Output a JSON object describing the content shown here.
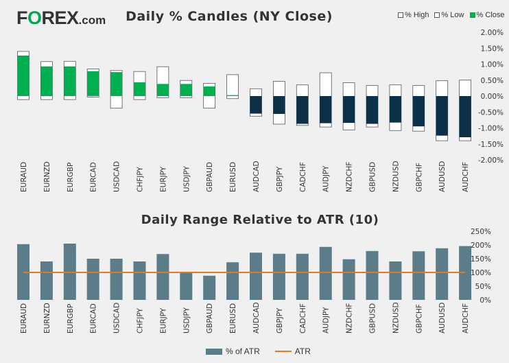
{
  "logo": {
    "pre": "F",
    "o": "O",
    "post": "REX",
    "suffix": ".com"
  },
  "chart_data": [
    {
      "type": "candlestick",
      "title": "Daily % Candles (NY Close)",
      "legend": [
        "% High",
        "% Low",
        "% Close"
      ],
      "categories": [
        "EURAUD",
        "EURNZD",
        "EURGBP",
        "EURCAD",
        "USDCAD",
        "CHFJPY",
        "EURJPY",
        "USDJPY",
        "GBPAUD",
        "EURUSD",
        "AUDCAD",
        "GBPJPY",
        "CADCHF",
        "AUDJPY",
        "NZDCHF",
        "GBPUSD",
        "NZDUSD",
        "GBPCHF",
        "AUDUSD",
        "AUDCHF"
      ],
      "high": [
        1.4,
        1.08,
        1.09,
        0.85,
        0.8,
        0.77,
        0.92,
        0.49,
        0.4,
        0.67,
        0.23,
        0.46,
        0.35,
        0.73,
        0.42,
        0.33,
        0.35,
        0.33,
        0.48,
        0.5
      ],
      "low": [
        -0.11,
        -0.11,
        -0.11,
        -0.03,
        -0.38,
        -0.11,
        -0.05,
        -0.05,
        -0.38,
        -0.08,
        -0.63,
        -0.88,
        -0.92,
        -0.97,
        -1.06,
        -0.97,
        -1.08,
        -1.1,
        -1.4,
        -1.4
      ],
      "close": [
        1.27,
        0.93,
        0.93,
        0.78,
        0.75,
        0.43,
        0.38,
        0.38,
        0.3,
        0.03,
        -0.55,
        -0.56,
        -0.87,
        -0.85,
        -0.84,
        -0.87,
        -0.83,
        -0.95,
        -1.24,
        -1.29
      ],
      "ylim": [
        -2.0,
        2.0
      ],
      "yticks": [
        "2.00%",
        "1.50%",
        "1.00%",
        "0.50%",
        "0.00%",
        "-0.50%",
        "-1.00%",
        "-1.50%",
        "-2.00%"
      ],
      "ytick_values": [
        2.0,
        1.5,
        1.0,
        0.5,
        0.0,
        -0.5,
        -1.0,
        -1.5,
        -2.0
      ],
      "colors": {
        "positive": "#00b050",
        "negative": "#0b3047",
        "range": "#ffffff",
        "outline": "#555555"
      }
    },
    {
      "type": "bar+line",
      "title": "Daily Range Relative to ATR (10)",
      "legend": [
        "% of ATR",
        "ATR"
      ],
      "categories": [
        "EURAUD",
        "EURNZD",
        "EURGBP",
        "EURCAD",
        "USDCAD",
        "CHFJPY",
        "EURJPY",
        "USDJPY",
        "GBPAUD",
        "EURUSD",
        "AUDCAD",
        "GBPJPY",
        "CADCHF",
        "AUDJPY",
        "NZDCHF",
        "GBPUSD",
        "NZDUSD",
        "GBPCHF",
        "AUDUSD",
        "AUDCHF"
      ],
      "values": [
        203,
        140,
        205,
        150,
        150,
        140,
        167,
        98,
        88,
        137,
        172,
        168,
        168,
        193,
        148,
        178,
        140,
        177,
        188,
        196
      ],
      "atr_line": 100,
      "ylim": [
        0,
        250
      ],
      "yticks": [
        "250%",
        "200%",
        "150%",
        "100%",
        "50%",
        "0%"
      ],
      "ytick_values": [
        250,
        200,
        150,
        100,
        50,
        0
      ],
      "colors": {
        "bar": "#5b7c89",
        "line": "#e07b24"
      }
    }
  ]
}
